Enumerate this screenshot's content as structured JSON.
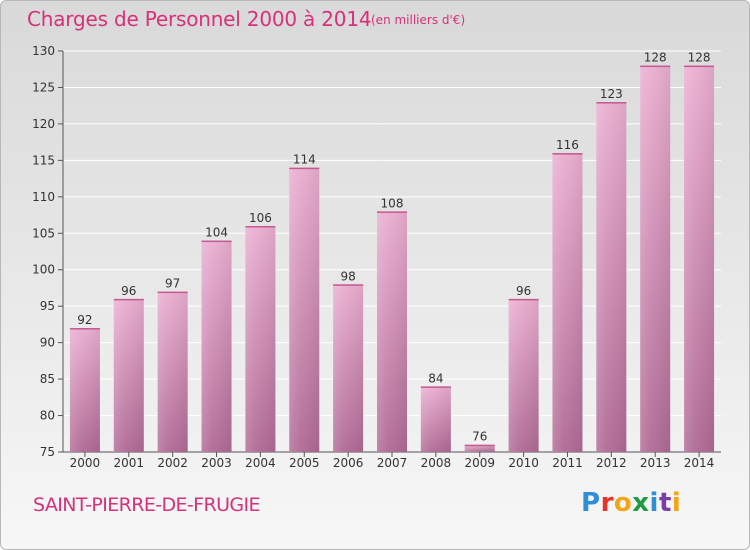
{
  "header": {
    "title": "Charges de Personnel 2000 à 2014",
    "unit_note": "(en milliers d'€)"
  },
  "footer": {
    "commune": "SAINT-PIERRE-DE-FRUGIE",
    "brand": "Proxiti",
    "brand_colors": [
      "#2f8fd6",
      "#e8332a",
      "#f2a516",
      "#1f9b44",
      "#2f8fd6",
      "#7a3ea6",
      "#f2a516"
    ]
  },
  "colors": {
    "title": "#d6317a",
    "bar_top": "#eaaed0",
    "bar_bottom": "#b06a95",
    "grid": "#ffffff",
    "axis_text": "#333333"
  },
  "chart_data": {
    "type": "bar",
    "title": "Charges de Personnel 2000 à 2014",
    "subtitle": "(en milliers d'€)",
    "categories": [
      "2000",
      "2001",
      "2002",
      "2003",
      "2004",
      "2005",
      "2006",
      "2007",
      "2008",
      "2009",
      "2010",
      "2011",
      "2012",
      "2013",
      "2014"
    ],
    "values": [
      92,
      96,
      97,
      104,
      106,
      114,
      98,
      108,
      84,
      76,
      96,
      116,
      123,
      128,
      128
    ],
    "xlabel": "",
    "ylabel": "",
    "ylim": [
      75,
      130
    ],
    "yticks": [
      75,
      80,
      85,
      90,
      95,
      100,
      105,
      110,
      115,
      120,
      125,
      130
    ],
    "grid": true,
    "data_labels": true
  }
}
